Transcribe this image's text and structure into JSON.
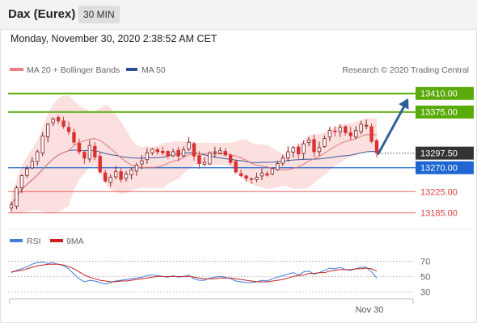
{
  "header": {
    "instrument": "Dax (Eurex)",
    "timeframe": "30 MIN"
  },
  "timestamp": "Monday, November 30, 2020 2:38:52 AM CET",
  "legend": {
    "ma20_label": "MA 20 + Bollinger Bands",
    "ma50_label": "MA 50",
    "credit": "Research © 2020 Trading Central",
    "rsi_label": "RSI",
    "rsi9ma_label": "9MA"
  },
  "colors": {
    "resistance": "#5aaa0a",
    "support_blue": "#1f66d1",
    "support_red": "#e04040",
    "ma20": "#e07878",
    "bollinger_fill": "#fbd9d9",
    "ma50": "#3a5a9a",
    "candle_up": "#7a1f1f",
    "candle_down": "#d93030",
    "arrow": "#2f5f99",
    "current_price_bg": "#333333",
    "rsi_line": "#3d7be0",
    "rsi_ma_line": "#c62222"
  },
  "chart_data": [
    {
      "type": "candlestick",
      "title": "Dax (Eurex)",
      "interval": "30 MIN",
      "ylim": [
        13160,
        13440
      ],
      "x_tick_labels": [
        "Nov 30"
      ],
      "overlays": [
        "MA 20 + Bollinger Bands",
        "MA 50"
      ],
      "levels": [
        {
          "value": 13410.0,
          "label": "13410.00",
          "kind": "resistance"
        },
        {
          "value": 13375.0,
          "label": "13375.00",
          "kind": "resistance"
        },
        {
          "value": 13297.5,
          "label": "13297.50",
          "kind": "current"
        },
        {
          "value": 13270.0,
          "label": "13270.00",
          "kind": "pivot"
        },
        {
          "value": 13225.0,
          "label": "13225.00",
          "kind": "support"
        },
        {
          "value": 13185.0,
          "label": "13185.00",
          "kind": "support"
        }
      ],
      "closes": [
        13200,
        13232,
        13255,
        13268,
        13282,
        13300,
        13330,
        13352,
        13362,
        13358,
        13348,
        13338,
        13318,
        13300,
        13288,
        13312,
        13290,
        13262,
        13245,
        13252,
        13263,
        13248,
        13258,
        13266,
        13275,
        13283,
        13298,
        13305,
        13300,
        13298,
        13292,
        13300,
        13292,
        13304,
        13318,
        13292,
        13278,
        13280,
        13298,
        13300,
        13302,
        13294,
        13280,
        13262,
        13255,
        13250,
        13248,
        13252,
        13260,
        13256,
        13268,
        13278,
        13288,
        13300,
        13308,
        13296,
        13315,
        13322,
        13300,
        13308,
        13325,
        13340,
        13338,
        13346,
        13336,
        13330,
        13340,
        13352,
        13350,
        13320,
        13298
      ],
      "arrow_target": 13410.0
    },
    {
      "type": "line",
      "title": "RSI",
      "series": [
        {
          "name": "RSI"
        },
        {
          "name": "9MA"
        }
      ],
      "ylim": [
        25,
        80
      ],
      "y_ticks": [
        70,
        50,
        30
      ],
      "rsi_values": [
        55,
        58,
        60,
        63,
        66,
        68,
        69,
        67,
        68,
        66,
        64,
        60,
        53,
        47,
        43,
        45,
        44,
        42,
        40,
        42,
        44,
        45,
        46,
        47,
        48,
        49,
        51,
        52,
        51,
        50,
        49,
        51,
        49,
        50,
        52,
        47,
        45,
        45,
        48,
        49,
        50,
        49,
        47,
        44,
        43,
        42,
        42,
        43,
        45,
        44,
        47,
        49,
        51,
        53,
        55,
        52,
        56,
        57,
        53,
        55,
        58,
        61,
        60,
        62,
        59,
        58,
        60,
        62,
        62,
        56,
        48
      ],
      "ma_values": [
        56,
        57,
        58,
        60,
        62,
        64,
        65,
        66,
        66,
        66,
        65,
        63,
        60,
        56,
        52,
        49,
        47,
        45,
        44,
        43,
        43,
        44,
        44,
        45,
        46,
        47,
        48,
        49,
        50,
        50,
        50,
        50,
        50,
        50,
        50,
        49,
        48,
        47,
        47,
        47,
        48,
        48,
        48,
        47,
        46,
        45,
        44,
        43,
        43,
        43,
        44,
        45,
        46,
        48,
        50,
        51,
        52,
        54,
        54,
        55,
        55,
        57,
        58,
        59,
        59,
        59,
        60,
        60,
        61,
        60,
        57
      ]
    }
  ]
}
